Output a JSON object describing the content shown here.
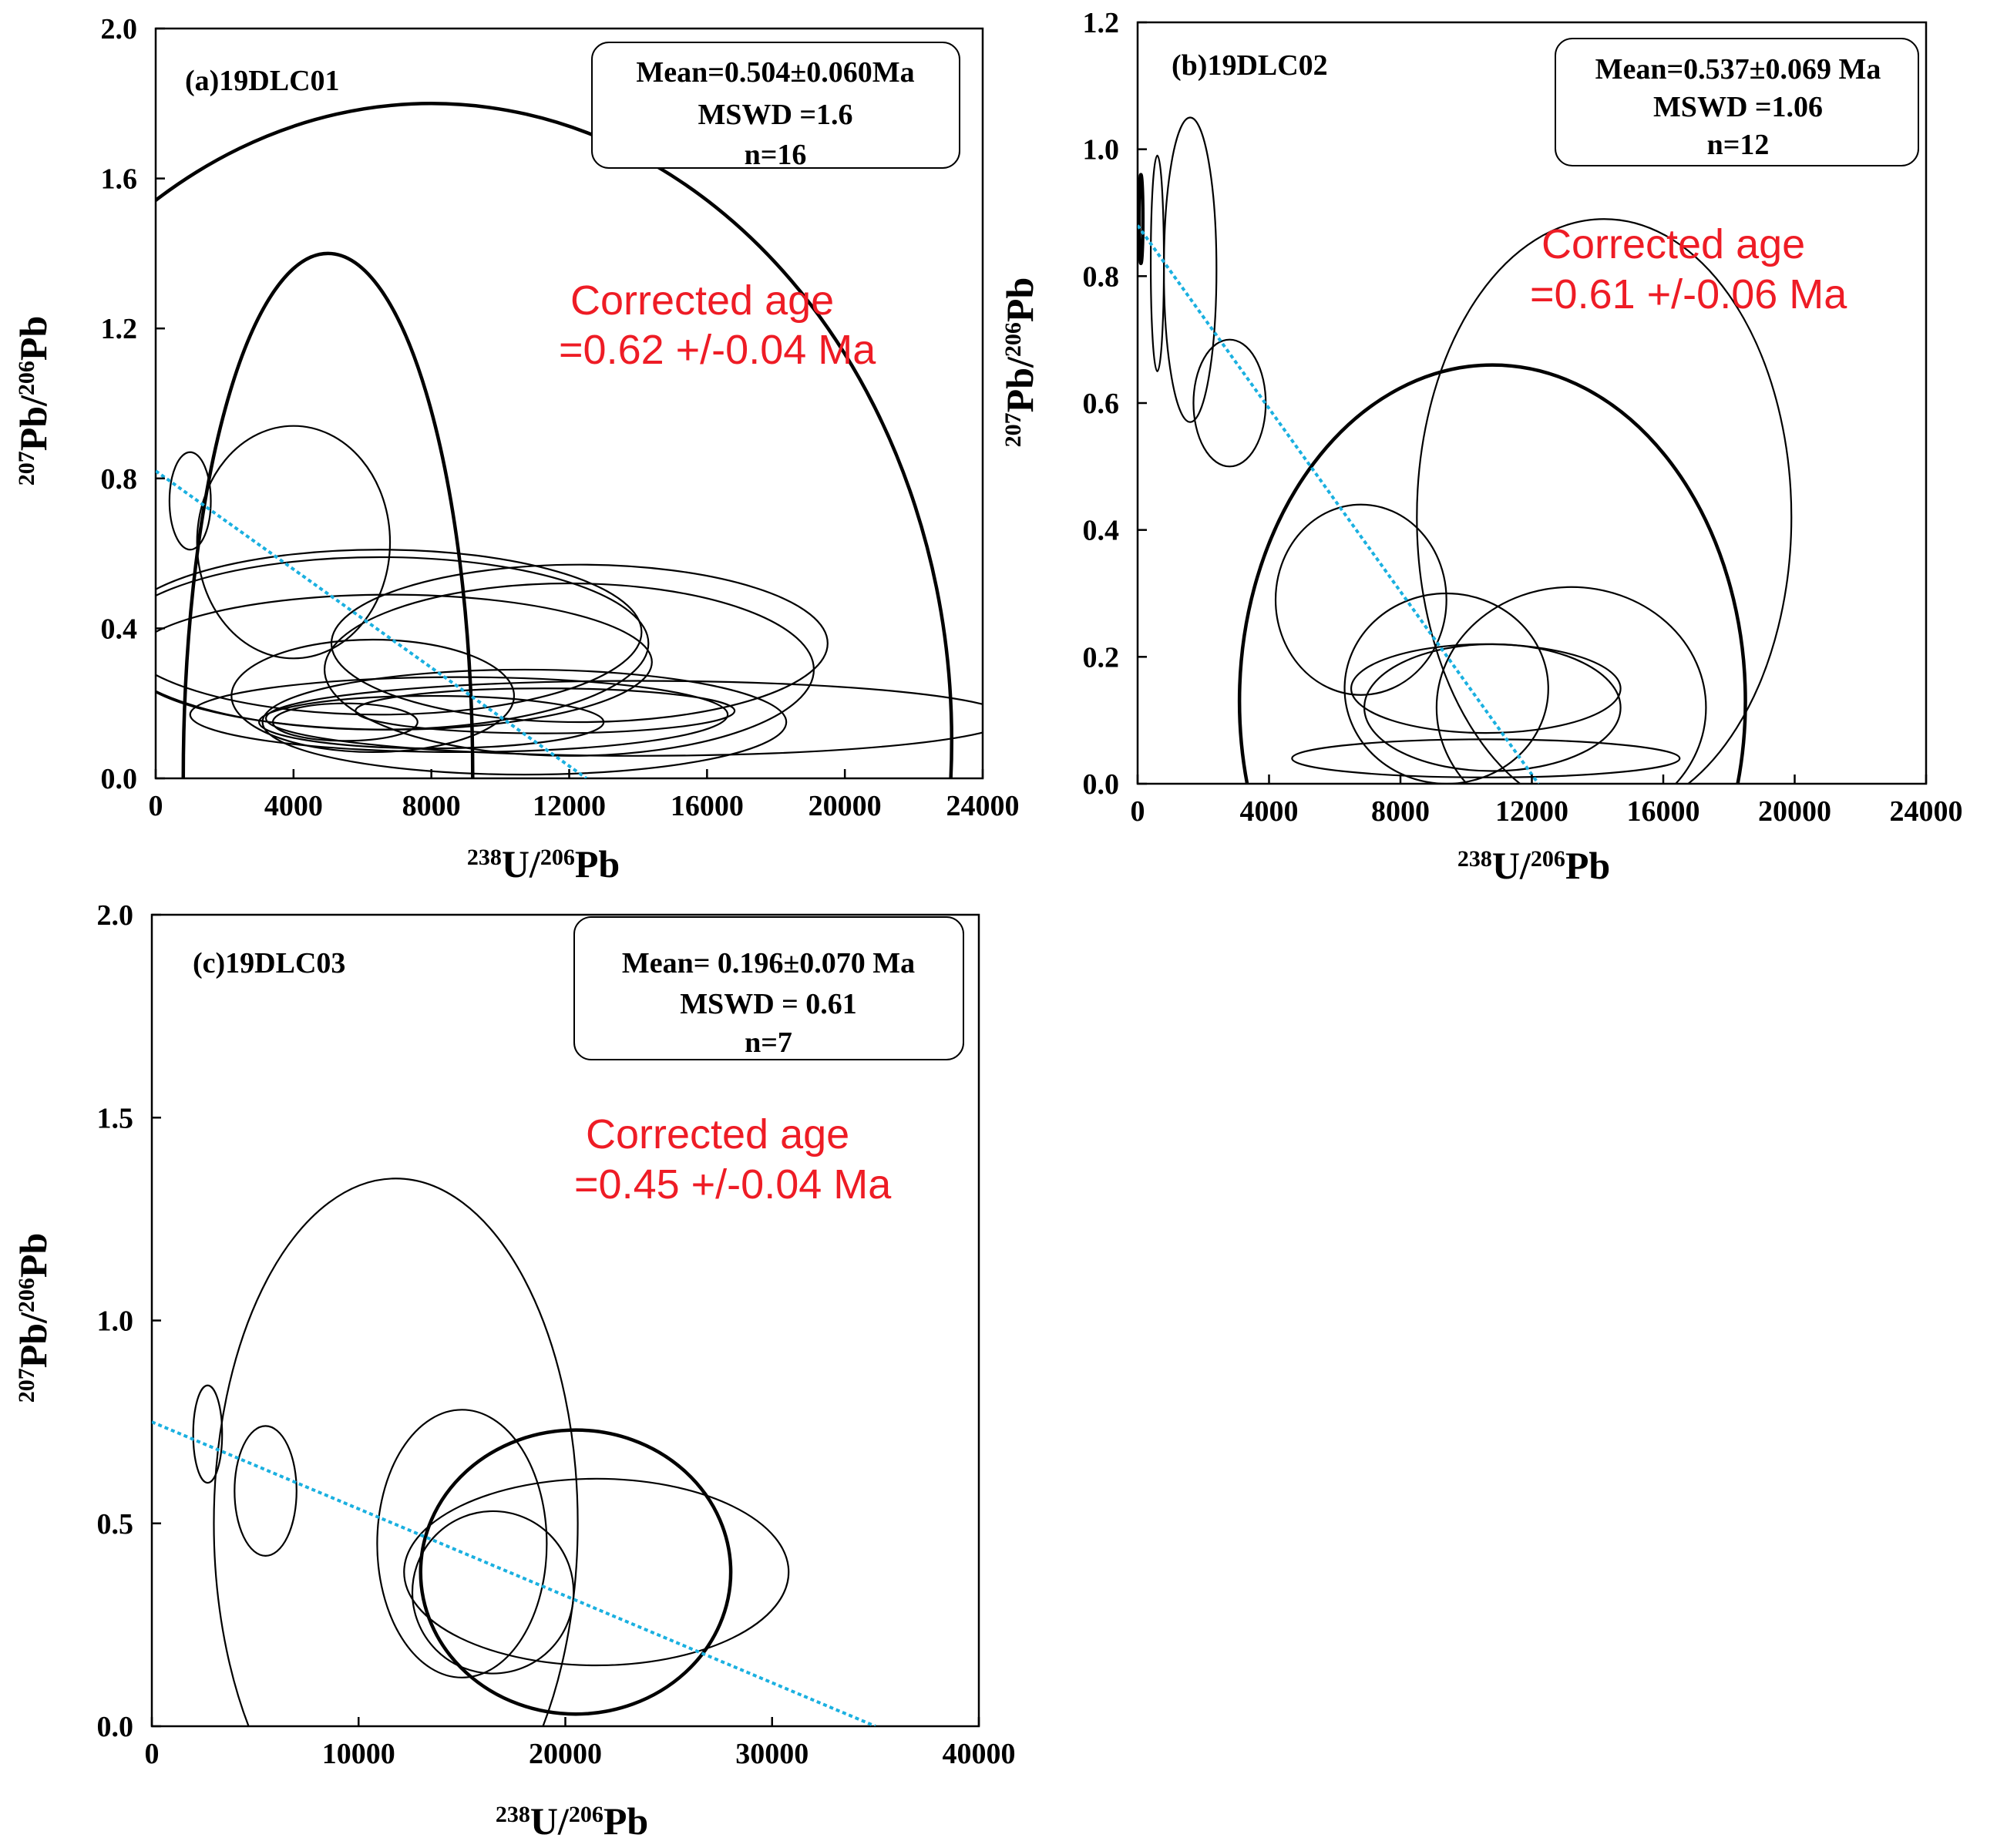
{
  "chart_data": [
    {
      "type": "scatter",
      "panel_label": "(a)19DLC01",
      "xlabel": {
        "iso_mass": "238",
        "element": "U/",
        "iso_mass2": "206",
        "element2": "Pb"
      },
      "ylabel": {
        "iso_mass": "207",
        "element": "Pb/",
        "iso_mass2": "206",
        "element2": "Pb"
      },
      "xlim": [
        0,
        24000
      ],
      "ylim": [
        0,
        2.0
      ],
      "xticks": [
        0,
        4000,
        8000,
        12000,
        16000,
        20000,
        24000
      ],
      "xtick_labels": [
        "0",
        "4000",
        "8000",
        "12000",
        "16000",
        "20000",
        "24000"
      ],
      "yticks": [
        0.0,
        0.4,
        0.8,
        1.2,
        1.6,
        2.0
      ],
      "ytick_labels": [
        "0.0",
        "0.4",
        "0.8",
        "1.2",
        "1.6",
        "2.0"
      ],
      "stats": [
        "Mean=0.504±0.060Ma",
        "MSWD =1.6",
        "n=16"
      ],
      "annotation": [
        "Corrected age",
        "=0.62 +/-0.04 Ma"
      ],
      "regression": {
        "x": [
          0,
          12500
        ],
        "y": [
          0.82,
          0.0
        ]
      },
      "ellipses": [
        {
          "cx": 8000,
          "cy": 0.1,
          "rx": 15100,
          "ry": 1.7,
          "bold": true
        },
        {
          "cx": 5000,
          "cy": 0.0,
          "rx": 4200,
          "ry": 1.4,
          "bold": true
        },
        {
          "cx": 1000,
          "cy": 0.74,
          "rx": 600,
          "ry": 0.13,
          "bold": false
        },
        {
          "cx": 4000,
          "cy": 0.63,
          "rx": 2800,
          "ry": 0.31,
          "bold": false
        },
        {
          "cx": 6500,
          "cy": 0.39,
          "rx": 7600,
          "ry": 0.22,
          "bold": false
        },
        {
          "cx": 12300,
          "cy": 0.36,
          "rx": 7200,
          "ry": 0.21,
          "bold": false
        },
        {
          "cx": 6500,
          "cy": 0.36,
          "rx": 7800,
          "ry": 0.23,
          "bold": false
        },
        {
          "cx": 6800,
          "cy": 0.31,
          "rx": 7600,
          "ry": 0.18,
          "bold": false
        },
        {
          "cx": 12000,
          "cy": 0.29,
          "rx": 7100,
          "ry": 0.23,
          "bold": false
        },
        {
          "cx": 6300,
          "cy": 0.22,
          "rx": 4100,
          "ry": 0.15,
          "bold": false
        },
        {
          "cx": 5500,
          "cy": 0.15,
          "rx": 2100,
          "ry": 0.05,
          "bold": false
        },
        {
          "cx": 8800,
          "cy": 0.17,
          "rx": 7800,
          "ry": 0.1,
          "bold": false
        },
        {
          "cx": 10700,
          "cy": 0.15,
          "rx": 7600,
          "ry": 0.14,
          "bold": false
        },
        {
          "cx": 14000,
          "cy": 0.16,
          "rx": 10800,
          "ry": 0.1,
          "bold": false
        },
        {
          "cx": 8000,
          "cy": 0.15,
          "rx": 5000,
          "ry": 0.07,
          "bold": false
        },
        {
          "cx": 11300,
          "cy": 0.18,
          "rx": 5500,
          "ry": 0.06,
          "bold": false
        }
      ]
    },
    {
      "type": "scatter",
      "panel_label": "(b)19DLC02",
      "xlabel": {
        "iso_mass": "238",
        "element": "U/",
        "iso_mass2": "206",
        "element2": "Pb"
      },
      "ylabel": {
        "iso_mass": "207",
        "element": "Pb/",
        "iso_mass2": "206",
        "element2": "Pb"
      },
      "xlim": [
        0,
        24000
      ],
      "ylim": [
        0,
        1.2
      ],
      "xticks": [
        0,
        4000,
        8000,
        12000,
        16000,
        20000,
        24000
      ],
      "xtick_labels": [
        "0",
        "4000",
        "8000",
        "12000",
        "16000",
        "20000",
        "24000"
      ],
      "yticks": [
        0.0,
        0.2,
        0.4,
        0.6,
        0.8,
        1.0,
        1.2
      ],
      "ytick_labels": [
        "0.0",
        "0.2",
        "0.4",
        "0.6",
        "0.8",
        "1.0",
        "1.2"
      ],
      "stats": [
        "Mean=0.537±0.069 Ma",
        "MSWD =1.06",
        "n=12"
      ],
      "annotation": [
        "Corrected age",
        "=0.61 +/-0.06 Ma"
      ],
      "regression": {
        "x": [
          0,
          12200
        ],
        "y": [
          0.88,
          0.0
        ]
      },
      "ellipses": [
        {
          "cx": 100,
          "cy": 0.89,
          "rx": 60,
          "ry": 0.07,
          "bold": true
        },
        {
          "cx": 600,
          "cy": 0.82,
          "rx": 200,
          "ry": 0.17,
          "bold": false
        },
        {
          "cx": 1600,
          "cy": 0.81,
          "rx": 800,
          "ry": 0.24,
          "bold": false
        },
        {
          "cx": 2800,
          "cy": 0.6,
          "rx": 1100,
          "ry": 0.1,
          "bold": false
        },
        {
          "cx": 6800,
          "cy": 0.29,
          "rx": 2600,
          "ry": 0.15,
          "bold": false
        },
        {
          "cx": 14200,
          "cy": 0.42,
          "rx": 5700,
          "ry": 0.47,
          "bold": false
        },
        {
          "cx": 10800,
          "cy": 0.13,
          "rx": 7700,
          "ry": 0.53,
          "bold": true
        },
        {
          "cx": 9400,
          "cy": 0.15,
          "rx": 3100,
          "ry": 0.15,
          "bold": false
        },
        {
          "cx": 13200,
          "cy": 0.12,
          "rx": 4100,
          "ry": 0.19,
          "bold": false
        },
        {
          "cx": 10600,
          "cy": 0.15,
          "rx": 4100,
          "ry": 0.07,
          "bold": false
        },
        {
          "cx": 10800,
          "cy": 0.12,
          "rx": 3900,
          "ry": 0.1,
          "bold": false
        },
        {
          "cx": 10600,
          "cy": 0.04,
          "rx": 5900,
          "ry": 0.03,
          "bold": false
        }
      ]
    },
    {
      "type": "scatter",
      "panel_label": "(c)19DLC03",
      "xlabel": {
        "iso_mass": "238",
        "element": "U/",
        "iso_mass2": "206",
        "element2": "Pb"
      },
      "ylabel": {
        "iso_mass": "207",
        "element": "Pb/",
        "iso_mass2": "206",
        "element2": "Pb"
      },
      "xlim": [
        0,
        40000
      ],
      "ylim": [
        0,
        2.0
      ],
      "xticks": [
        0,
        10000,
        20000,
        30000,
        40000
      ],
      "xtick_labels": [
        "0",
        "10000",
        "20000",
        "30000",
        "40000"
      ],
      "yticks": [
        0.0,
        0.5,
        1.0,
        1.5,
        2.0
      ],
      "ytick_labels": [
        "0.0",
        "0.5",
        "1.0",
        "1.5",
        "2.0"
      ],
      "stats": [
        "Mean= 0.196±0.070 Ma",
        "MSWD = 0.61",
        "n=7"
      ],
      "annotation": [
        "Corrected age",
        "=0.45 +/-0.04 Ma"
      ],
      "regression": {
        "x": [
          0,
          35000
        ],
        "y": [
          0.75,
          0.0
        ]
      },
      "ellipses": [
        {
          "cx": 2700,
          "cy": 0.72,
          "rx": 700,
          "ry": 0.12,
          "bold": false
        },
        {
          "cx": 5500,
          "cy": 0.58,
          "rx": 1500,
          "ry": 0.16,
          "bold": false
        },
        {
          "cx": 11800,
          "cy": 0.5,
          "rx": 8800,
          "ry": 0.85,
          "bold": false
        },
        {
          "cx": 15000,
          "cy": 0.45,
          "rx": 4100,
          "ry": 0.33,
          "bold": false
        },
        {
          "cx": 20500,
          "cy": 0.38,
          "rx": 7500,
          "ry": 0.35,
          "bold": true
        },
        {
          "cx": 21500,
          "cy": 0.38,
          "rx": 9300,
          "ry": 0.23,
          "bold": false
        },
        {
          "cx": 16500,
          "cy": 0.33,
          "rx": 3900,
          "ry": 0.2,
          "bold": false
        }
      ]
    }
  ]
}
